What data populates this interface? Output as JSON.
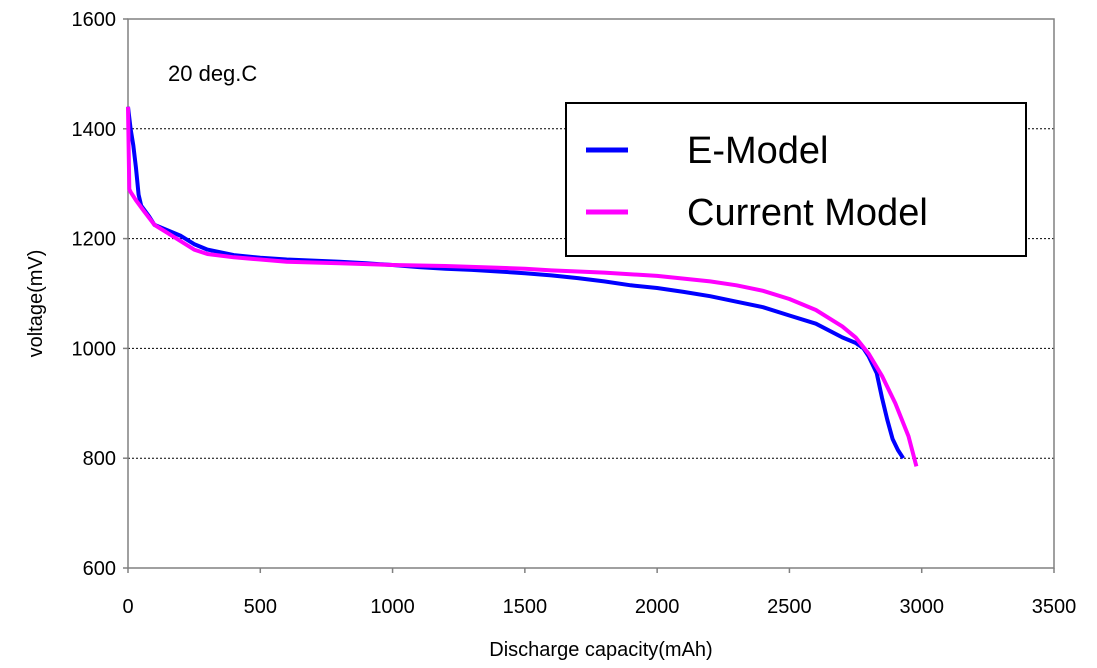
{
  "chart_data": {
    "type": "line",
    "title": "",
    "annotation": "20 deg.C",
    "xlabel": "Discharge capacity(mAh)",
    "ylabel": "voltage(mV)",
    "xlim": [
      0,
      3500
    ],
    "ylim": [
      600,
      1600
    ],
    "xticks": [
      "0",
      "500",
      "1000",
      "1500",
      "2000",
      "2500",
      "3000",
      "3500"
    ],
    "yticks": [
      "600",
      "800",
      "1000",
      "1200",
      "1400",
      "1600"
    ],
    "grid": "horizontal dotted",
    "legend_position": "top-right",
    "series": [
      {
        "name": "E-Model",
        "color": "#0000ff",
        "x": [
          0,
          10,
          20,
          30,
          40,
          50,
          80,
          100,
          150,
          200,
          250,
          300,
          400,
          500,
          600,
          800,
          900,
          1000,
          1100,
          1200,
          1300,
          1400,
          1500,
          1600,
          1700,
          1800,
          1900,
          2000,
          2100,
          2200,
          2300,
          2400,
          2500,
          2600,
          2700,
          2750,
          2780,
          2800,
          2830,
          2850,
          2870,
          2890,
          2910,
          2930
        ],
        "y": [
          1440,
          1400,
          1370,
          1330,
          1280,
          1260,
          1240,
          1225,
          1215,
          1205,
          1190,
          1180,
          1170,
          1165,
          1162,
          1158,
          1155,
          1152,
          1148,
          1145,
          1143,
          1140,
          1137,
          1133,
          1128,
          1122,
          1115,
          1110,
          1103,
          1095,
          1085,
          1075,
          1060,
          1045,
          1020,
          1010,
          1000,
          985,
          955,
          910,
          870,
          835,
          815,
          800
        ]
      },
      {
        "name": "Current Model",
        "color": "#ff00ff",
        "x": [
          0,
          5,
          10,
          30,
          60,
          100,
          150,
          200,
          250,
          300,
          400,
          500,
          600,
          800,
          1000,
          1200,
          1400,
          1500,
          1600,
          1800,
          2000,
          2200,
          2300,
          2400,
          2500,
          2600,
          2700,
          2750,
          2800,
          2850,
          2900,
          2950,
          2980
        ],
        "y": [
          1440,
          1290,
          1285,
          1270,
          1250,
          1225,
          1210,
          1195,
          1180,
          1172,
          1166,
          1162,
          1158,
          1155,
          1152,
          1150,
          1147,
          1145,
          1142,
          1138,
          1132,
          1122,
          1115,
          1105,
          1090,
          1070,
          1040,
          1020,
          990,
          950,
          900,
          840,
          785
        ]
      }
    ]
  }
}
